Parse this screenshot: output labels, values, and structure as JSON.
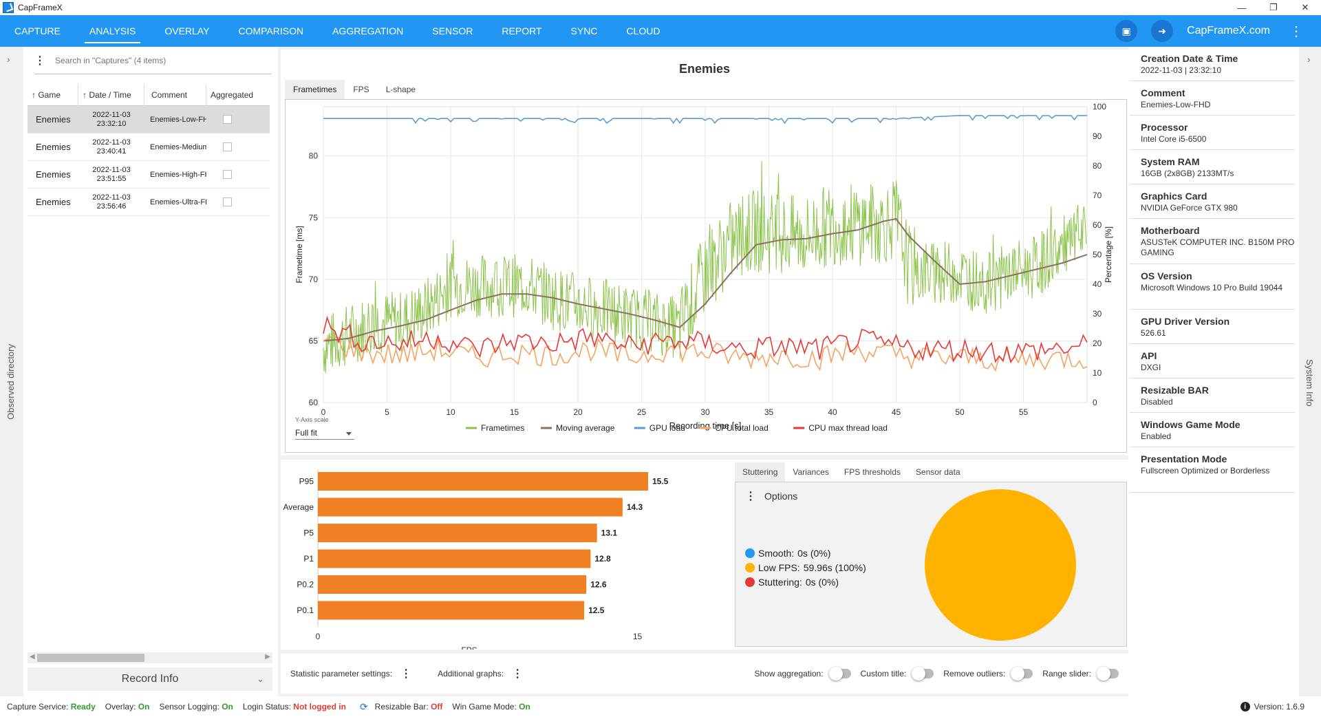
{
  "window": {
    "title": "CapFrameX"
  },
  "nav": {
    "tabs": [
      "CAPTURE",
      "ANALYSIS",
      "OVERLAY",
      "COMPARISON",
      "AGGREGATION",
      "SENSOR",
      "REPORT",
      "SYNC",
      "CLOUD"
    ],
    "active": "ANALYSIS",
    "site": "CapFrameX.com"
  },
  "left": {
    "strip_label": "Observed directory"
  },
  "captures": {
    "search_placeholder": "Search in \"Captures\" (4 items)",
    "columns": {
      "game": "Game",
      "date": "Date / Time",
      "comment": "Comment",
      "aggregated": "Aggregated"
    },
    "rows": [
      {
        "game": "Enemies",
        "date": "2022-11-03",
        "time": "23:32:10",
        "comment": "Enemies-Low-FHD"
      },
      {
        "game": "Enemies",
        "date": "2022-11-03",
        "time": "23:40:41",
        "comment": "Enemies-Medium-FHD"
      },
      {
        "game": "Enemies",
        "date": "2022-11-03",
        "time": "23:51:55",
        "comment": "Enemies-High-FHD"
      },
      {
        "game": "Enemies",
        "date": "2022-11-03",
        "time": "23:56:46",
        "comment": "Enemies-Ultra-FHD"
      }
    ],
    "record_info": "Record Info"
  },
  "analysis": {
    "title": "Enemies",
    "subtabs": [
      "Frametimes",
      "FPS",
      "L-shape"
    ],
    "yaxis_scale_label": "Y-Axis scale",
    "yaxis_scale_value": "Full fit"
  },
  "chart_data": [
    {
      "type": "line",
      "title": "",
      "xlabel": "Recording time [s]",
      "ylabel": "Frametime [ms]",
      "y2label": "Percentage [%]",
      "xlim": [
        0,
        60
      ],
      "ylim": [
        60,
        84
      ],
      "y2lim": [
        0,
        100
      ],
      "x_ticks": [
        0,
        5,
        10,
        15,
        20,
        25,
        30,
        35,
        40,
        45,
        50,
        55
      ],
      "y_ticks": [
        60,
        65,
        70,
        75,
        80
      ],
      "y2_ticks": [
        0,
        10,
        20,
        30,
        40,
        50,
        60,
        70,
        80,
        90,
        100
      ],
      "grid": true,
      "legend": "bottom",
      "series": [
        {
          "name": "Frametimes",
          "axis": "left",
          "color": "#8bc34a",
          "x": [
            0,
            2,
            4,
            6,
            8,
            10,
            12,
            14,
            16,
            18,
            20,
            22,
            24,
            26,
            28,
            30,
            32,
            34,
            36,
            38,
            40,
            42,
            44,
            45,
            46,
            48,
            50,
            52,
            54,
            56,
            58,
            60
          ],
          "values": [
            64.5,
            65.5,
            66.5,
            66.5,
            67.5,
            69.5,
            69.5,
            69.5,
            69.5,
            68.5,
            68,
            67.5,
            67,
            66.5,
            66,
            70.5,
            73,
            74,
            73.5,
            73.5,
            74.5,
            74.5,
            74.5,
            75,
            71,
            70.5,
            70.5,
            69.5,
            70.5,
            71,
            72.5,
            73.5
          ]
        },
        {
          "name": "Moving average",
          "axis": "left",
          "color": "#8d6e63",
          "x": [
            0,
            2,
            4,
            6,
            8,
            10,
            12,
            14,
            16,
            18,
            20,
            22,
            24,
            26,
            28,
            30,
            32,
            34,
            36,
            38,
            40,
            42,
            44,
            45,
            46,
            48,
            50,
            52,
            54,
            56,
            58,
            60
          ],
          "values": [
            65,
            65.2,
            65.8,
            66.2,
            66.7,
            67.5,
            68.3,
            68.8,
            68.8,
            68.5,
            68,
            67.6,
            67.2,
            66.7,
            66.1,
            68,
            70.5,
            72.8,
            73.2,
            73.3,
            73.7,
            74,
            74.7,
            74.9,
            73.5,
            71.5,
            69.6,
            69.8,
            70.3,
            70.8,
            71.3,
            72
          ]
        },
        {
          "name": "GPU load",
          "axis": "right",
          "color": "#5b9bd5",
          "x": [
            0,
            5,
            10,
            15,
            20,
            25,
            30,
            35,
            40,
            45,
            50,
            55,
            60
          ],
          "values": [
            96,
            96,
            96,
            96,
            96,
            96,
            96,
            96,
            96,
            96,
            97,
            97,
            97
          ]
        },
        {
          "name": "CPU total load",
          "axis": "right",
          "color": "#f4a460",
          "x": [
            0,
            3,
            6,
            9,
            12,
            15,
            18,
            21,
            24,
            27,
            30,
            33,
            36,
            39,
            42,
            45,
            48,
            51,
            54,
            57,
            60
          ],
          "values": [
            22,
            17,
            16,
            18,
            15,
            17,
            16,
            18,
            15,
            18,
            17,
            15,
            16,
            15,
            18,
            16,
            15,
            15,
            14,
            15,
            15
          ]
        },
        {
          "name": "CPU max thread load",
          "axis": "right",
          "color": "#e53935",
          "x": [
            0,
            3,
            6,
            9,
            12,
            15,
            18,
            21,
            24,
            27,
            30,
            33,
            36,
            39,
            42,
            45,
            48,
            51,
            54,
            57,
            60
          ],
          "values": [
            26,
            21,
            20,
            22,
            18,
            21,
            20,
            22,
            19,
            21,
            20,
            18,
            19,
            18,
            21,
            19,
            18,
            18,
            17,
            18,
            19
          ]
        }
      ]
    },
    {
      "type": "bar",
      "orientation": "horizontal",
      "title": "",
      "categories": [
        "P95",
        "Average",
        "P5",
        "P1",
        "P0.2",
        "P0.1"
      ],
      "values": [
        15.5,
        14.3,
        13.1,
        12.8,
        12.6,
        12.5
      ],
      "xlabel": "FPS",
      "xlim": [
        0,
        15.5
      ],
      "x_ticks": [
        0,
        15
      ],
      "color": "#f08024"
    },
    {
      "type": "pie",
      "title": "",
      "categories": [
        "Smooth",
        "Low FPS",
        "Stuttering"
      ],
      "values": [
        0,
        59.96,
        0
      ],
      "colors": [
        "#2196f3",
        "#ffb300",
        "#e53935"
      ]
    }
  ],
  "stuttering": {
    "tabs": [
      "Stuttering",
      "Variances",
      "FPS thresholds",
      "Sensor data"
    ],
    "options": "Options",
    "legend": [
      {
        "label": "Smooth:",
        "value": "0s (0%)",
        "color": "#2196f3"
      },
      {
        "label": "Low FPS:",
        "value": "59.96s (100%)",
        "color": "#ffb300"
      },
      {
        "label": "Stuttering:",
        "value": "0s (0%)",
        "color": "#e53935"
      }
    ]
  },
  "bottom_bar": {
    "statistic": "Statistic parameter settings:",
    "additional": "Additional graphs:",
    "show_agg": "Show aggregation:",
    "custom_title": "Custom title:",
    "remove_outliers": "Remove outliers:",
    "range_slider": "Range slider:"
  },
  "system_info": {
    "strip_label": "System Info",
    "items": [
      {
        "k": "Creation Date & Time",
        "v": "2022-11-03  |  23:32:10"
      },
      {
        "k": "Comment",
        "v": "Enemies-Low-FHD"
      },
      {
        "k": "Processor",
        "v": "Intel Core i5-6500"
      },
      {
        "k": "System RAM",
        "v": "16GB (2x8GB) 2133MT/s"
      },
      {
        "k": "Graphics Card",
        "v": "NVIDIA GeForce GTX 980"
      },
      {
        "k": "Motherboard",
        "v": "ASUSTeK COMPUTER INC. B150M PRO GAMING"
      },
      {
        "k": "OS Version",
        "v": "Microsoft Windows 10 Pro Build 19044"
      },
      {
        "k": "GPU Driver Version",
        "v": "526.61"
      },
      {
        "k": "API",
        "v": "DXGI"
      },
      {
        "k": "Resizable BAR",
        "v": "Disabled"
      },
      {
        "k": "Windows Game Mode",
        "v": "Enabled"
      },
      {
        "k": "Presentation Mode",
        "v": "Fullscreen Optimized or Borderless"
      }
    ]
  },
  "status": {
    "capture_label": "Capture Service:",
    "capture_value": "Ready",
    "overlay_label": "Overlay:",
    "overlay_value": "On",
    "sensor_label": "Sensor Logging:",
    "sensor_value": "On",
    "login_label": "Login Status:",
    "login_value": "Not logged in",
    "rebar_label": "Resizable Bar:",
    "rebar_value": "Off",
    "gamemode_label": "Win Game Mode:",
    "gamemode_value": "On",
    "version": "Version: 1.6.9"
  }
}
